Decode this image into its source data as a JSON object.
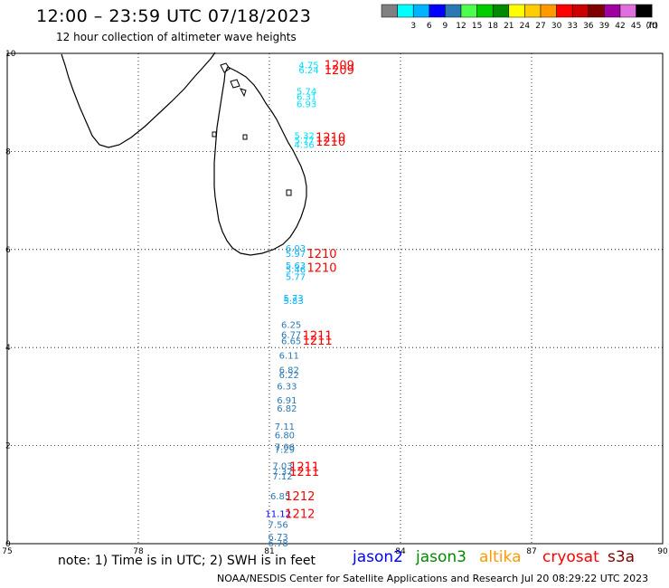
{
  "header": {
    "title": "12:00 – 23:59 UTC 07/18/2023",
    "subtitle": "12 hour collection of altimeter wave heights"
  },
  "legend": {
    "unit": "(ft)",
    "swatches": [
      {
        "color": "#808080",
        "label": ""
      },
      {
        "color": "#00ffff",
        "label": "3"
      },
      {
        "color": "#00b4ff",
        "label": "6"
      },
      {
        "color": "#0000ff",
        "label": "9"
      },
      {
        "color": "#2b78b4",
        "label": "12"
      },
      {
        "color": "#4cff4c",
        "label": "15"
      },
      {
        "color": "#00cc00",
        "label": "18"
      },
      {
        "color": "#008a00",
        "label": "21"
      },
      {
        "color": "#ffff00",
        "label": "24"
      },
      {
        "color": "#ffcc00",
        "label": "27"
      },
      {
        "color": "#ff9900",
        "label": "30"
      },
      {
        "color": "#ff0000",
        "label": "33"
      },
      {
        "color": "#cc0000",
        "label": "36"
      },
      {
        "color": "#800000",
        "label": "39"
      },
      {
        "color": "#a000a0",
        "label": "42"
      },
      {
        "color": "#e070e0",
        "label": "45"
      },
      {
        "color": "#000000",
        "label": "70"
      }
    ]
  },
  "map": {
    "lon_range": [
      75,
      90
    ],
    "lat_range": [
      0,
      10
    ],
    "x_ticks": [
      "75",
      "78",
      "81",
      "84",
      "87",
      "90"
    ],
    "y_ticks": [
      "0",
      "2",
      "4",
      "6",
      "8",
      "10"
    ],
    "grid": "dotted"
  },
  "observations": [
    {
      "lon": 81.9,
      "lat": 9.77,
      "value": "4.75",
      "color": "#00e0ff"
    },
    {
      "lon": 81.9,
      "lat": 9.67,
      "value": "6.24",
      "color": "#00e0ff"
    },
    {
      "lon": 81.85,
      "lat": 9.23,
      "value": "5.74",
      "color": "#00e0ff"
    },
    {
      "lon": 81.85,
      "lat": 9.12,
      "value": "6.31",
      "color": "#00e0ff"
    },
    {
      "lon": 81.85,
      "lat": 8.98,
      "value": "6.93",
      "color": "#00e0ff"
    },
    {
      "lon": 81.8,
      "lat": 8.33,
      "value": "5.32",
      "color": "#00e0ff"
    },
    {
      "lon": 81.8,
      "lat": 8.24,
      "value": "5.77",
      "color": "#00e0ff"
    },
    {
      "lon": 81.8,
      "lat": 8.15,
      "value": "4.36",
      "color": "#00e0ff"
    },
    {
      "lon": 81.6,
      "lat": 6.03,
      "value": "6.03",
      "color": "#00b4ff"
    },
    {
      "lon": 81.6,
      "lat": 5.92,
      "value": "5.97",
      "color": "#00b4ff"
    },
    {
      "lon": 81.6,
      "lat": 5.68,
      "value": "5.63",
      "color": "#00b4ff"
    },
    {
      "lon": 81.6,
      "lat": 5.6,
      "value": "5.46",
      "color": "#00b4ff"
    },
    {
      "lon": 81.6,
      "lat": 5.45,
      "value": "5.77",
      "color": "#00b4ff"
    },
    {
      "lon": 81.55,
      "lat": 5.02,
      "value": "5.73",
      "color": "#00b4ff"
    },
    {
      "lon": 81.55,
      "lat": 4.96,
      "value": "5.83",
      "color": "#00b4ff"
    },
    {
      "lon": 81.5,
      "lat": 4.47,
      "value": "6.25",
      "color": "#2b78b4"
    },
    {
      "lon": 81.5,
      "lat": 4.27,
      "value": "6.77",
      "color": "#2b78b4"
    },
    {
      "lon": 81.5,
      "lat": 4.14,
      "value": "6.65",
      "color": "#2b78b4"
    },
    {
      "lon": 81.45,
      "lat": 3.85,
      "value": "6.11",
      "color": "#2b78b4"
    },
    {
      "lon": 81.45,
      "lat": 3.55,
      "value": "6.82",
      "color": "#2b78b4"
    },
    {
      "lon": 81.45,
      "lat": 3.45,
      "value": "6.22",
      "color": "#2b78b4"
    },
    {
      "lon": 81.4,
      "lat": 3.22,
      "value": "6.33",
      "color": "#2b78b4"
    },
    {
      "lon": 81.4,
      "lat": 2.93,
      "value": "6.91",
      "color": "#2b78b4"
    },
    {
      "lon": 81.4,
      "lat": 2.77,
      "value": "6.82",
      "color": "#2b78b4"
    },
    {
      "lon": 81.35,
      "lat": 2.4,
      "value": "7.11",
      "color": "#2b78b4"
    },
    {
      "lon": 81.35,
      "lat": 2.22,
      "value": "6.80",
      "color": "#2b78b4"
    },
    {
      "lon": 81.35,
      "lat": 1.98,
      "value": "7.06",
      "color": "#2b78b4"
    },
    {
      "lon": 81.35,
      "lat": 1.93,
      "value": "7.29",
      "color": "#2b78b4"
    },
    {
      "lon": 81.3,
      "lat": 1.6,
      "value": "7.03",
      "color": "#2b78b4"
    },
    {
      "lon": 81.3,
      "lat": 1.48,
      "value": "7.37",
      "color": "#2b78b4"
    },
    {
      "lon": 81.3,
      "lat": 1.38,
      "value": "7.12",
      "color": "#2b78b4"
    },
    {
      "lon": 81.25,
      "lat": 0.98,
      "value": "6.85",
      "color": "#2b78b4"
    },
    {
      "lon": 81.2,
      "lat": 0.62,
      "value": "11.12",
      "color": "#0000ff"
    },
    {
      "lon": 81.2,
      "lat": 0.4,
      "value": "7.56",
      "color": "#2b78b4"
    },
    {
      "lon": 81.2,
      "lat": 0.15,
      "value": "6.73",
      "color": "#2b78b4"
    },
    {
      "lon": 81.2,
      "lat": 0.02,
      "value": "6.78",
      "color": "#2b78b4"
    }
  ],
  "time_labels": [
    {
      "lon": 82.6,
      "lat": 9.77,
      "text": "1209",
      "color": "#ff0000"
    },
    {
      "lon": 82.6,
      "lat": 9.67,
      "text": "1209",
      "color": "#ff0000"
    },
    {
      "lon": 82.4,
      "lat": 8.29,
      "text": "1210",
      "color": "#ff0000"
    },
    {
      "lon": 82.4,
      "lat": 8.21,
      "text": "1210",
      "color": "#ff0000"
    },
    {
      "lon": 82.2,
      "lat": 5.92,
      "text": "1210",
      "color": "#ff0000"
    },
    {
      "lon": 82.2,
      "lat": 5.64,
      "text": "1210",
      "color": "#ff0000"
    },
    {
      "lon": 82.1,
      "lat": 4.25,
      "text": "1211",
      "color": "#ff0000"
    },
    {
      "lon": 82.1,
      "lat": 4.15,
      "text": "1211",
      "color": "#ff0000"
    },
    {
      "lon": 81.8,
      "lat": 1.58,
      "text": "1211",
      "color": "#ff0000"
    },
    {
      "lon": 81.8,
      "lat": 1.48,
      "text": "1211",
      "color": "#ff0000"
    },
    {
      "lon": 81.7,
      "lat": 0.98,
      "text": "1212",
      "color": "#ff0000"
    },
    {
      "lon": 81.7,
      "lat": 0.62,
      "text": "1212",
      "color": "#ff0000"
    }
  ],
  "footer": {
    "note": "note: 1) Time is in UTC; 2) SWH is in feet",
    "credit": "NOAA/NESDIS Center for Satellite Applications and Research    Jul 20 08:29:22 UTC 2023",
    "missions": [
      {
        "name": "jason2",
        "color": "#0000ff"
      },
      {
        "name": "jason3",
        "color": "#008a00"
      },
      {
        "name": "altika",
        "color": "#ff9900"
      },
      {
        "name": "cryosat",
        "color": "#ff0000"
      },
      {
        "name": "s3a",
        "color": "#800000"
      }
    ]
  }
}
